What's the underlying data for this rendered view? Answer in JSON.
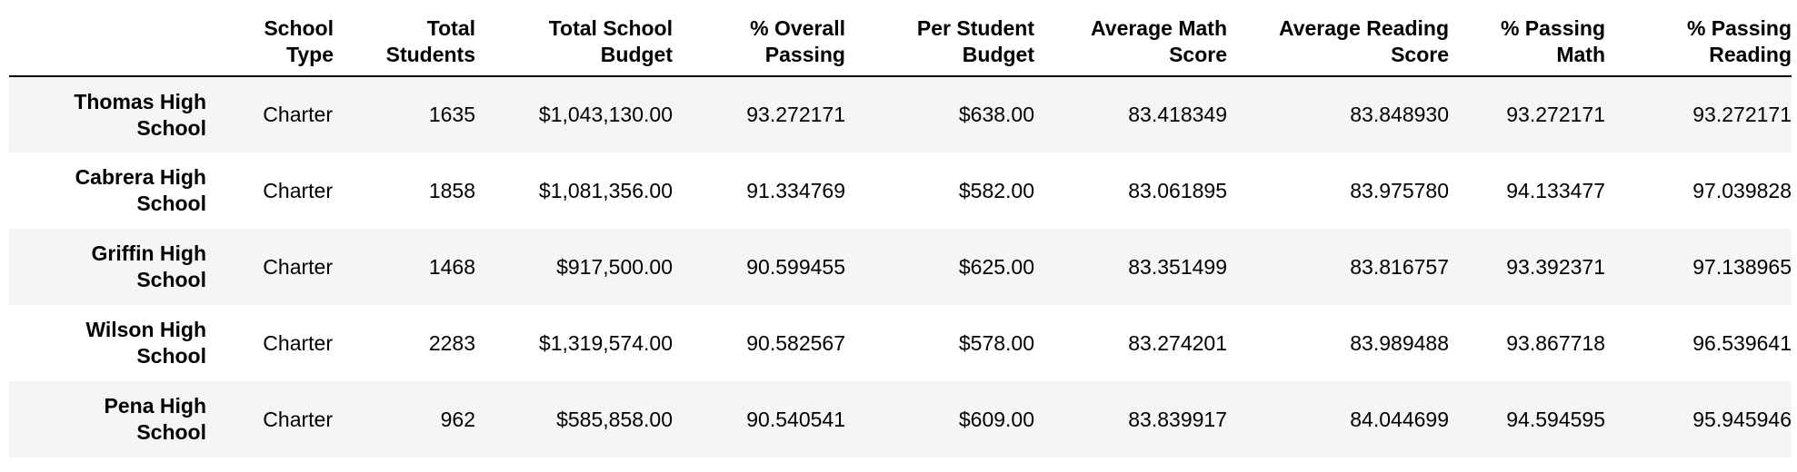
{
  "table": {
    "columns": [
      {
        "line1": "School",
        "line2": "Type"
      },
      {
        "line1": "Total",
        "line2": "Students"
      },
      {
        "line1": "Total School",
        "line2": "Budget"
      },
      {
        "line1": "% Overall",
        "line2": "Passing"
      },
      {
        "line1": "Per Student",
        "line2": "Budget"
      },
      {
        "line1": "Average Math",
        "line2": "Score"
      },
      {
        "line1": "Average Reading",
        "line2": "Score"
      },
      {
        "line1": "% Passing",
        "line2": "Math"
      },
      {
        "line1": "% Passing",
        "line2": "Reading"
      }
    ],
    "rows": [
      {
        "name_line1": "Thomas High",
        "name_line2": "School",
        "cells": [
          "Charter",
          "1635",
          "$1,043,130.00",
          "93.272171",
          "$638.00",
          "83.418349",
          "83.848930",
          "93.272171",
          "93.272171"
        ]
      },
      {
        "name_line1": "Cabrera High",
        "name_line2": "School",
        "cells": [
          "Charter",
          "1858",
          "$1,081,356.00",
          "91.334769",
          "$582.00",
          "83.061895",
          "83.975780",
          "94.133477",
          "97.039828"
        ]
      },
      {
        "name_line1": "Griffin High",
        "name_line2": "School",
        "cells": [
          "Charter",
          "1468",
          "$917,500.00",
          "90.599455",
          "$625.00",
          "83.351499",
          "83.816757",
          "93.392371",
          "97.138965"
        ]
      },
      {
        "name_line1": "Wilson High",
        "name_line2": "School",
        "cells": [
          "Charter",
          "2283",
          "$1,319,574.00",
          "90.582567",
          "$578.00",
          "83.274201",
          "83.989488",
          "93.867718",
          "96.539641"
        ]
      },
      {
        "name_line1": "Pena High",
        "name_line2": "School",
        "cells": [
          "Charter",
          "962",
          "$585,858.00",
          "90.540541",
          "$609.00",
          "83.839917",
          "84.044699",
          "94.594595",
          "95.945946"
        ]
      }
    ]
  }
}
